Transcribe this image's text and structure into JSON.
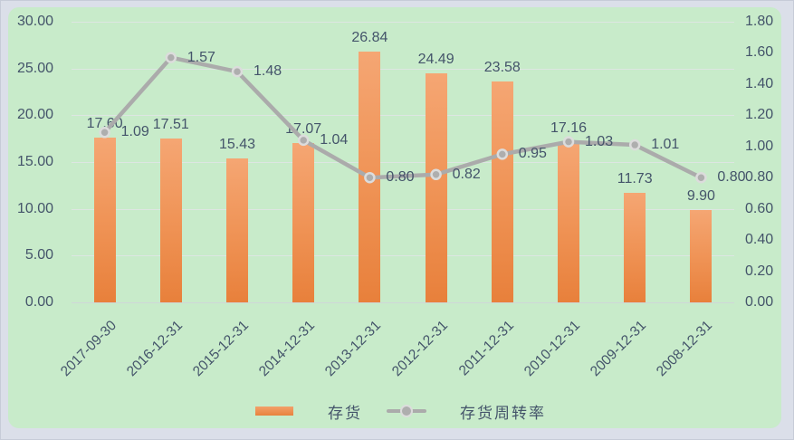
{
  "chart_data": {
    "type": "bar",
    "subtype": "combo-bar-line",
    "title": "",
    "xlabel": "",
    "ylabel": "",
    "categories": [
      "2017-09-30",
      "2016-12-31",
      "2015-12-31",
      "2014-12-31",
      "2013-12-31",
      "2012-12-31",
      "2011-12-31",
      "2010-12-31",
      "2009-12-31",
      "2008-12-31"
    ],
    "series": [
      {
        "name": "存货",
        "type": "bar",
        "axis": "left",
        "values": [
          17.6,
          17.51,
          15.43,
          17.07,
          26.84,
          24.49,
          23.58,
          17.16,
          11.73,
          9.9
        ],
        "labels": [
          "17.60",
          "17.51",
          "15.43",
          "17.07",
          "26.84",
          "24.49",
          "23.58",
          "17.16",
          "11.73",
          "9.90"
        ]
      },
      {
        "name": "存货周转率",
        "type": "line",
        "axis": "right",
        "values": [
          1.09,
          1.57,
          1.48,
          1.04,
          0.8,
          0.82,
          0.95,
          1.03,
          1.01,
          0.8
        ],
        "labels": [
          "1.09",
          "1.57",
          "1.48",
          "1.04",
          "0.80",
          "0.82",
          "0.95",
          "1.03",
          "1.01",
          "0.80"
        ]
      }
    ],
    "left_axis": {
      "min": 0,
      "max": 30,
      "step": 5,
      "ticks": [
        "30.00",
        "25.00",
        "20.00",
        "15.00",
        "10.00",
        "5.00",
        "0.00"
      ]
    },
    "right_axis": {
      "min": 0,
      "max": 1.8,
      "step": 0.2,
      "ticks": [
        "1.80",
        "1.60",
        "1.40",
        "1.20",
        "1.00",
        "0.80",
        "0.60",
        "0.40",
        "0.20",
        "0.00"
      ]
    },
    "grid": "horizontal-on",
    "legend_position": "bottom",
    "colors": {
      "panel_background": "#c8ebca",
      "frame_background": "#dbdfe9",
      "bar_gradient_top": "#f5a673",
      "bar_gradient_bottom": "#e8803b",
      "line": "#ababab",
      "marker_fill": "#aeaeae",
      "marker_ring": "#dcdcdc",
      "text": "#44546a",
      "gridline": "#dde6e2"
    }
  }
}
